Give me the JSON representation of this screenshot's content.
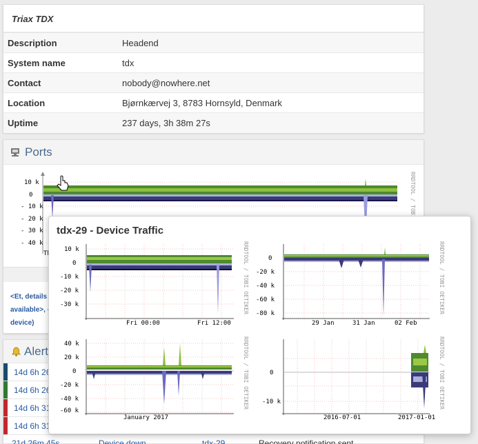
{
  "device": {
    "title": "Triax TDX",
    "rows": [
      {
        "label": "Description",
        "value": "Headend"
      },
      {
        "label": "System name",
        "value": "tdx"
      },
      {
        "label": "Contact",
        "value": "nobody@nowhere.net"
      },
      {
        "label": "Location",
        "value": "Bjørnkærvej 3, 8783 Hornsyld, Denmark"
      },
      {
        "label": "Uptime",
        "value": "237 days, 3h 38m 27s"
      }
    ]
  },
  "ports": {
    "title": "Ports",
    "graph": {
      "y_ticks": [
        "10 k",
        "0",
        "- 10 k",
        "- 20 k",
        "- 30 k",
        "- 40 k"
      ],
      "x_label_partial": "Th",
      "watermark": "RRDTOOL / TOBI"
    },
    "info_text": [
      "<Et, details",
      "available>, -",
      "device)"
    ]
  },
  "alerts": {
    "title": "Alert",
    "rows": [
      {
        "time": "14d 6h 26",
        "color": "#194b6b"
      },
      {
        "time": "14d 6h 26",
        "color": "#2f7a2f"
      },
      {
        "time": "14d 6h 31",
        "color": "#c0282d"
      },
      {
        "time": "14d 6h 31",
        "color": "#c0282d"
      }
    ],
    "last_row": {
      "time": "21d 26m 45s",
      "type": "Device down",
      "device": "tdx-29",
      "message": "Recovery notification sent"
    }
  },
  "popup": {
    "title": "tdx-29 - Device Traffic",
    "watermark": "RRDTOOL / TOBI OETIKER",
    "graphs": [
      {
        "y_ticks": [
          "10 k",
          "0",
          "-10 k",
          "-20 k",
          "-30 k"
        ],
        "x_ticks": [
          "Fri 00:00",
          "Fri 12:00"
        ]
      },
      {
        "y_ticks": [
          "0",
          "-20 k",
          "-40 k",
          "-60 k",
          "-80 k"
        ],
        "x_ticks": [
          "29 Jan",
          "31 Jan",
          "02 Feb"
        ]
      },
      {
        "y_ticks": [
          "40 k",
          "20 k",
          "0",
          "-20 k",
          "-40 k",
          "-60 k"
        ],
        "x_ticks": [
          "January 2017"
        ]
      },
      {
        "y_ticks": [
          "0",
          "-10 k"
        ],
        "x_ticks": [
          "2016-07-01",
          "2017-01-01"
        ]
      }
    ]
  },
  "colors": {
    "accent": "#4a6a8c",
    "link": "#2a5aa0",
    "in": "#4e8a2e",
    "out": "#2a2a6a"
  }
}
